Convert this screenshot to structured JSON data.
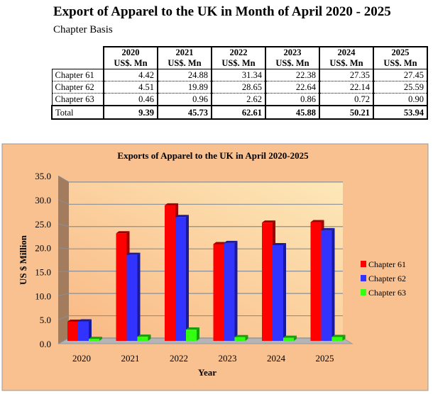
{
  "title": "Export of Apparel to the UK in Month of April 2020 - 2025",
  "subtitle": "Chapter Basis",
  "table": {
    "years": [
      "2020",
      "2021",
      "2022",
      "2023",
      "2024",
      "2025"
    ],
    "unit": "US$. Mn",
    "rows": [
      {
        "label": "Chapter 61",
        "values": [
          "4.42",
          "24.88",
          "31.34",
          "22.38",
          "27.35",
          "27.45"
        ]
      },
      {
        "label": "Chapter 62",
        "values": [
          "4.51",
          "19.89",
          "28.65",
          "22.64",
          "22.14",
          "25.59"
        ]
      },
      {
        "label": "Chapter 63",
        "values": [
          "0.46",
          "0.96",
          "2.62",
          "0.86",
          "0.72",
          "0.90"
        ]
      }
    ],
    "total": {
      "label": "Total",
      "values": [
        "9.39",
        "45.73",
        "62.61",
        "45.88",
        "50.21",
        "53.94"
      ]
    }
  },
  "chart_data": {
    "type": "bar",
    "title": "Exports of Apparel to the UK in April 2020-2025",
    "xlabel": "Year",
    "ylabel": "US $ Million",
    "categories": [
      "2020",
      "2021",
      "2022",
      "2023",
      "2024",
      "2025"
    ],
    "ylim": [
      0,
      35
    ],
    "yticks": [
      "0.0",
      "5.0",
      "10.0",
      "15.0",
      "20.0",
      "25.0",
      "30.0",
      "35.0"
    ],
    "legend_position": "right",
    "series": [
      {
        "name": "Chapter 61",
        "color": "#ff0000",
        "values": [
          4.42,
          24.88,
          31.34,
          22.38,
          27.35,
          27.45
        ]
      },
      {
        "name": "Chapter 62",
        "color": "#3333ff",
        "values": [
          4.51,
          19.89,
          28.65,
          22.64,
          22.14,
          25.59
        ]
      },
      {
        "name": "Chapter 63",
        "color": "#33ff11",
        "values": [
          0.46,
          0.96,
          2.62,
          0.86,
          0.72,
          0.9
        ]
      }
    ]
  }
}
